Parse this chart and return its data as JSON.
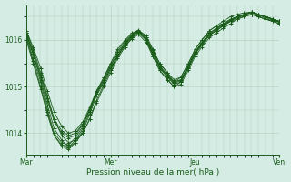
{
  "title": "Pression niveau de la mer( hPa )",
  "bg_color": "#d4ece4",
  "plot_bg_color": "#d4ece4",
  "line_color": "#1a5c1a",
  "grid_color_v": "#b0ccb8",
  "grid_color_h": "#b0ccb8",
  "tick_color": "#1a5c1a",
  "text_color": "#1a5c1a",
  "ylim": [
    1013.55,
    1016.75
  ],
  "yticks": [
    1014,
    1015,
    1016
  ],
  "xtick_labels": [
    "Mar",
    "Mer",
    "Jeu",
    "Ven"
  ],
  "xtick_positions": [
    0,
    1,
    2,
    3
  ],
  "figsize": [
    3.2,
    2.0
  ],
  "dpi": 100,
  "series": [
    {
      "x": [
        0.0,
        0.08,
        0.17,
        0.25,
        0.33,
        0.42,
        0.5,
        0.58,
        0.67,
        0.75,
        0.83,
        0.92,
        1.0,
        1.08,
        1.17,
        1.25,
        1.33,
        1.42,
        1.5,
        1.58,
        1.67,
        1.75,
        1.83,
        1.92,
        2.0,
        2.08,
        2.17,
        2.25,
        2.33,
        2.42,
        2.5,
        2.58,
        2.67,
        2.75,
        2.83,
        2.92,
        3.0
      ],
      "y": [
        1016.2,
        1015.8,
        1015.3,
        1014.8,
        1014.3,
        1013.95,
        1013.8,
        1013.85,
        1014.0,
        1014.3,
        1014.65,
        1015.0,
        1015.3,
        1015.6,
        1015.85,
        1016.05,
        1016.2,
        1016.1,
        1015.8,
        1015.5,
        1015.3,
        1015.1,
        1015.2,
        1015.5,
        1015.8,
        1016.0,
        1016.2,
        1016.3,
        1016.35,
        1016.4,
        1016.45,
        1016.5,
        1016.55,
        1016.5,
        1016.45,
        1016.4,
        1016.35
      ]
    },
    {
      "x": [
        0.0,
        0.08,
        0.17,
        0.25,
        0.33,
        0.42,
        0.5,
        0.58,
        0.67,
        0.75,
        0.83,
        0.92,
        1.0,
        1.08,
        1.17,
        1.25,
        1.33,
        1.42,
        1.5,
        1.58,
        1.67,
        1.75,
        1.83,
        1.92,
        2.0,
        2.08,
        2.17,
        2.25,
        2.33,
        2.42,
        2.5,
        2.58,
        2.67,
        2.75,
        2.83,
        2.92,
        3.0
      ],
      "y": [
        1016.1,
        1015.6,
        1015.1,
        1014.5,
        1014.0,
        1013.8,
        1013.75,
        1013.9,
        1014.15,
        1014.5,
        1014.9,
        1015.2,
        1015.5,
        1015.8,
        1016.0,
        1016.15,
        1016.2,
        1016.0,
        1015.7,
        1015.4,
        1015.2,
        1015.05,
        1015.1,
        1015.4,
        1015.7,
        1015.9,
        1016.1,
        1016.2,
        1016.3,
        1016.4,
        1016.5,
        1016.55,
        1016.6,
        1016.55,
        1016.5,
        1016.45,
        1016.4
      ]
    },
    {
      "x": [
        0.0,
        0.08,
        0.17,
        0.25,
        0.33,
        0.42,
        0.5,
        0.58,
        0.67,
        0.75,
        0.83,
        0.92,
        1.0,
        1.08,
        1.17,
        1.25,
        1.33,
        1.42,
        1.5,
        1.58,
        1.67,
        1.75,
        1.83,
        1.92,
        2.0,
        2.08,
        2.17,
        2.25,
        2.33,
        2.42,
        2.5,
        2.58,
        2.67,
        2.75,
        2.83,
        2.92,
        3.0
      ],
      "y": [
        1016.15,
        1015.7,
        1015.15,
        1014.6,
        1014.1,
        1013.85,
        1013.7,
        1013.8,
        1014.0,
        1014.3,
        1014.7,
        1015.05,
        1015.35,
        1015.65,
        1015.9,
        1016.1,
        1016.2,
        1016.05,
        1015.75,
        1015.45,
        1015.25,
        1015.1,
        1015.15,
        1015.45,
        1015.75,
        1015.95,
        1016.15,
        1016.25,
        1016.35,
        1016.45,
        1016.5,
        1016.55,
        1016.6,
        1016.55,
        1016.5,
        1016.45,
        1016.4
      ]
    },
    {
      "x": [
        0.0,
        0.08,
        0.17,
        0.25,
        0.33,
        0.42,
        0.5,
        0.58,
        0.67,
        0.75,
        0.83,
        0.92,
        1.0,
        1.08,
        1.17,
        1.25,
        1.33,
        1.42,
        1.5,
        1.58,
        1.67,
        1.75,
        1.83,
        1.92,
        2.0,
        2.08,
        2.17,
        2.25,
        2.33,
        2.42,
        2.5,
        2.58,
        2.67,
        2.75,
        2.83,
        2.92,
        3.0
      ],
      "y": [
        1016.05,
        1015.55,
        1015.0,
        1014.45,
        1013.95,
        1013.75,
        1013.7,
        1013.85,
        1014.1,
        1014.45,
        1014.85,
        1015.15,
        1015.45,
        1015.7,
        1015.95,
        1016.1,
        1016.2,
        1016.0,
        1015.65,
        1015.35,
        1015.15,
        1015.0,
        1015.1,
        1015.4,
        1015.7,
        1015.9,
        1016.1,
        1016.2,
        1016.3,
        1016.4,
        1016.5,
        1016.55,
        1016.6,
        1016.55,
        1016.5,
        1016.45,
        1016.4
      ]
    },
    {
      "x": [
        0.0,
        0.08,
        0.17,
        0.25,
        0.33,
        0.42,
        0.5,
        0.58,
        0.67,
        0.75,
        0.83,
        0.92,
        1.0,
        1.08,
        1.17,
        1.25,
        1.33,
        1.42,
        1.5,
        1.58,
        1.67,
        1.75,
        1.83,
        1.92,
        2.0,
        2.08,
        2.17,
        2.25,
        2.33,
        2.42,
        2.5,
        2.58,
        2.67,
        2.75,
        2.83,
        2.92,
        3.0
      ],
      "y": [
        1016.1,
        1015.7,
        1015.2,
        1014.7,
        1014.25,
        1014.0,
        1013.9,
        1013.95,
        1014.2,
        1014.5,
        1014.85,
        1015.1,
        1015.4,
        1015.65,
        1015.9,
        1016.05,
        1016.15,
        1016.0,
        1015.7,
        1015.42,
        1015.22,
        1015.08,
        1015.12,
        1015.42,
        1015.72,
        1015.92,
        1016.12,
        1016.22,
        1016.32,
        1016.42,
        1016.48,
        1016.52,
        1016.55,
        1016.5,
        1016.45,
        1016.42,
        1016.38
      ]
    },
    {
      "x": [
        0.0,
        0.08,
        0.17,
        0.25,
        0.33,
        0.42,
        0.5,
        0.58,
        0.67,
        0.75,
        0.83,
        0.92,
        1.0,
        1.08,
        1.17,
        1.25,
        1.33,
        1.42,
        1.5,
        1.58,
        1.67,
        1.75,
        1.83,
        1.92,
        2.0,
        2.08,
        2.17,
        2.25,
        2.33,
        2.42,
        2.5,
        2.58,
        2.67,
        2.75,
        2.83,
        2.92,
        3.0
      ],
      "y": [
        1016.0,
        1015.5,
        1014.95,
        1014.4,
        1013.95,
        1013.72,
        1013.65,
        1013.8,
        1014.05,
        1014.4,
        1014.8,
        1015.1,
        1015.4,
        1015.65,
        1015.88,
        1016.02,
        1016.12,
        1015.95,
        1015.65,
        1015.35,
        1015.15,
        1015.0,
        1015.05,
        1015.35,
        1015.65,
        1015.85,
        1016.05,
        1016.15,
        1016.25,
        1016.35,
        1016.45,
        1016.5,
        1016.55,
        1016.5,
        1016.45,
        1016.4,
        1016.35
      ]
    },
    {
      "x": [
        0.0,
        0.08,
        0.17,
        0.25,
        0.33,
        0.42,
        0.5,
        0.58,
        0.67,
        0.75,
        0.83,
        0.92,
        1.0,
        1.08,
        1.17,
        1.25,
        1.33,
        1.42,
        1.5,
        1.58,
        1.67,
        1.75,
        1.83,
        1.92,
        2.0,
        2.08,
        2.17,
        2.25,
        2.33,
        2.42,
        2.5,
        2.58,
        2.67,
        2.75,
        2.83,
        2.92,
        3.0
      ],
      "y": [
        1016.2,
        1015.85,
        1015.4,
        1014.9,
        1014.45,
        1014.15,
        1014.0,
        1014.05,
        1014.25,
        1014.55,
        1014.9,
        1015.2,
        1015.5,
        1015.75,
        1015.98,
        1016.12,
        1016.22,
        1016.05,
        1015.78,
        1015.5,
        1015.3,
        1015.15,
        1015.2,
        1015.5,
        1015.8,
        1016.0,
        1016.2,
        1016.3,
        1016.4,
        1016.5,
        1016.55,
        1016.58,
        1016.6,
        1016.55,
        1016.5,
        1016.45,
        1016.4
      ]
    },
    {
      "x": [
        0.0,
        0.08,
        0.17,
        0.25,
        0.33,
        0.42,
        0.5,
        0.58,
        0.67,
        0.75,
        0.83,
        0.92,
        1.0,
        1.08,
        1.17,
        1.25,
        1.33,
        1.42,
        1.5,
        1.58,
        1.67,
        1.75,
        1.83,
        1.92,
        2.0,
        2.08,
        2.17,
        2.25,
        2.33,
        2.42,
        2.5,
        2.58,
        2.67,
        2.75,
        2.83,
        2.92,
        3.0
      ],
      "y": [
        1016.15,
        1015.75,
        1015.25,
        1014.75,
        1014.3,
        1014.05,
        1013.95,
        1014.0,
        1014.2,
        1014.5,
        1014.88,
        1015.15,
        1015.45,
        1015.7,
        1015.92,
        1016.08,
        1016.18,
        1016.02,
        1015.72,
        1015.44,
        1015.24,
        1015.1,
        1015.14,
        1015.44,
        1015.74,
        1015.94,
        1016.14,
        1016.24,
        1016.34,
        1016.44,
        1016.5,
        1016.54,
        1016.58,
        1016.53,
        1016.48,
        1016.43,
        1016.38
      ]
    }
  ]
}
